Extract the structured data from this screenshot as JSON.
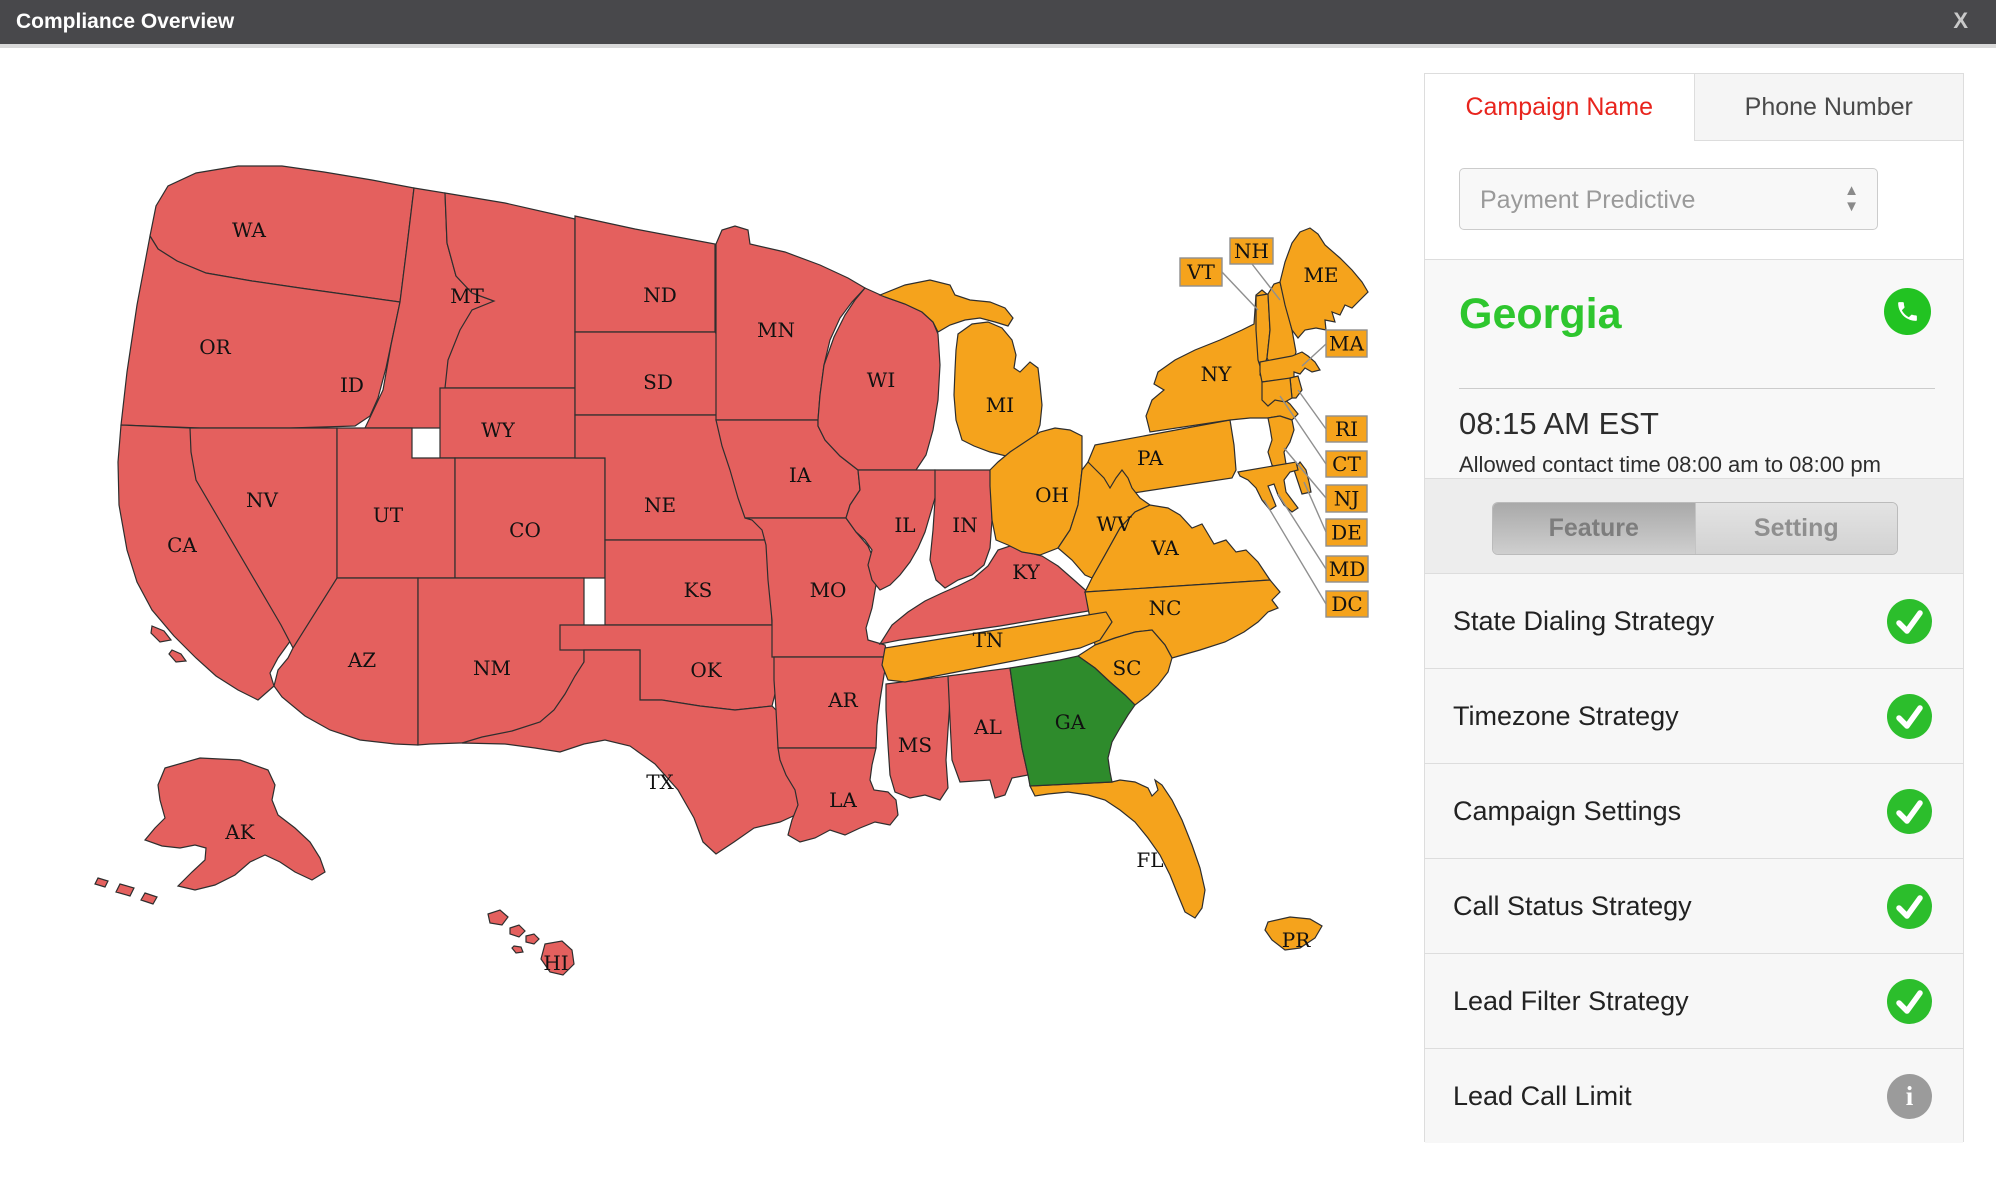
{
  "title_bar": {
    "title": "Compliance Overview",
    "close_label": "X"
  },
  "panel": {
    "tabs": [
      {
        "label": "Campaign Name",
        "active": true
      },
      {
        "label": "Phone Number",
        "active": false
      }
    ],
    "campaign_select": {
      "value": "Payment Predictive"
    },
    "state_info": {
      "name": "Georgia",
      "time": "08:15 AM EST",
      "allowed": "Allowed contact time 08:00 am to 08:00 pm"
    },
    "segmented": [
      {
        "label": "Feature",
        "active": true
      },
      {
        "label": "Setting",
        "active": false
      }
    ],
    "features": [
      {
        "label": "State Dialing Strategy",
        "status": "ok"
      },
      {
        "label": "Timezone Strategy",
        "status": "ok"
      },
      {
        "label": "Campaign Settings",
        "status": "ok"
      },
      {
        "label": "Call Status Strategy",
        "status": "ok"
      },
      {
        "label": "Lead Filter Strategy",
        "status": "ok"
      },
      {
        "label": "Lead Call Limit",
        "status": "info"
      }
    ]
  },
  "map": {
    "colors": {
      "red": "#E4605E",
      "orange": "#F5A31C",
      "green": "#2E8B2C"
    },
    "states": [
      {
        "code": "WA",
        "status": "red"
      },
      {
        "code": "OR",
        "status": "red"
      },
      {
        "code": "CA",
        "status": "red"
      },
      {
        "code": "NV",
        "status": "red"
      },
      {
        "code": "ID",
        "status": "red"
      },
      {
        "code": "MT",
        "status": "red"
      },
      {
        "code": "WY",
        "status": "red"
      },
      {
        "code": "UT",
        "status": "red"
      },
      {
        "code": "CO",
        "status": "red"
      },
      {
        "code": "AZ",
        "status": "red"
      },
      {
        "code": "NM",
        "status": "red"
      },
      {
        "code": "ND",
        "status": "red"
      },
      {
        "code": "SD",
        "status": "red"
      },
      {
        "code": "NE",
        "status": "red"
      },
      {
        "code": "KS",
        "status": "red"
      },
      {
        "code": "OK",
        "status": "red"
      },
      {
        "code": "TX",
        "status": "red"
      },
      {
        "code": "MN",
        "status": "red"
      },
      {
        "code": "IA",
        "status": "red"
      },
      {
        "code": "MO",
        "status": "red"
      },
      {
        "code": "AR",
        "status": "red"
      },
      {
        "code": "LA",
        "status": "red"
      },
      {
        "code": "WI",
        "status": "red"
      },
      {
        "code": "IL",
        "status": "red"
      },
      {
        "code": "IN",
        "status": "red"
      },
      {
        "code": "KY",
        "status": "red"
      },
      {
        "code": "MS",
        "status": "red"
      },
      {
        "code": "AL",
        "status": "red"
      },
      {
        "code": "AK",
        "status": "red"
      },
      {
        "code": "HI",
        "status": "red"
      },
      {
        "code": "MI",
        "status": "orange"
      },
      {
        "code": "OH",
        "status": "orange"
      },
      {
        "code": "PA",
        "status": "orange"
      },
      {
        "code": "NY",
        "status": "orange"
      },
      {
        "code": "VT",
        "status": "orange"
      },
      {
        "code": "NH",
        "status": "orange"
      },
      {
        "code": "ME",
        "status": "orange"
      },
      {
        "code": "MA",
        "status": "orange"
      },
      {
        "code": "RI",
        "status": "orange"
      },
      {
        "code": "CT",
        "status": "orange"
      },
      {
        "code": "NJ",
        "status": "orange"
      },
      {
        "code": "DE",
        "status": "orange"
      },
      {
        "code": "MD",
        "status": "orange"
      },
      {
        "code": "WV",
        "status": "orange"
      },
      {
        "code": "VA",
        "status": "orange"
      },
      {
        "code": "NC",
        "status": "orange"
      },
      {
        "code": "SC",
        "status": "orange"
      },
      {
        "code": "TN",
        "status": "orange"
      },
      {
        "code": "FL",
        "status": "orange"
      },
      {
        "code": "PR",
        "status": "orange"
      },
      {
        "code": "GA",
        "status": "green"
      }
    ],
    "callouts": [
      {
        "code": "VT",
        "status": "orange"
      },
      {
        "code": "NH",
        "status": "orange"
      },
      {
        "code": "MA",
        "status": "orange"
      },
      {
        "code": "RI",
        "status": "orange"
      },
      {
        "code": "CT",
        "status": "orange"
      },
      {
        "code": "NJ",
        "status": "orange"
      },
      {
        "code": "DE",
        "status": "orange"
      },
      {
        "code": "MD",
        "status": "orange"
      },
      {
        "code": "DC",
        "status": "orange"
      }
    ]
  }
}
